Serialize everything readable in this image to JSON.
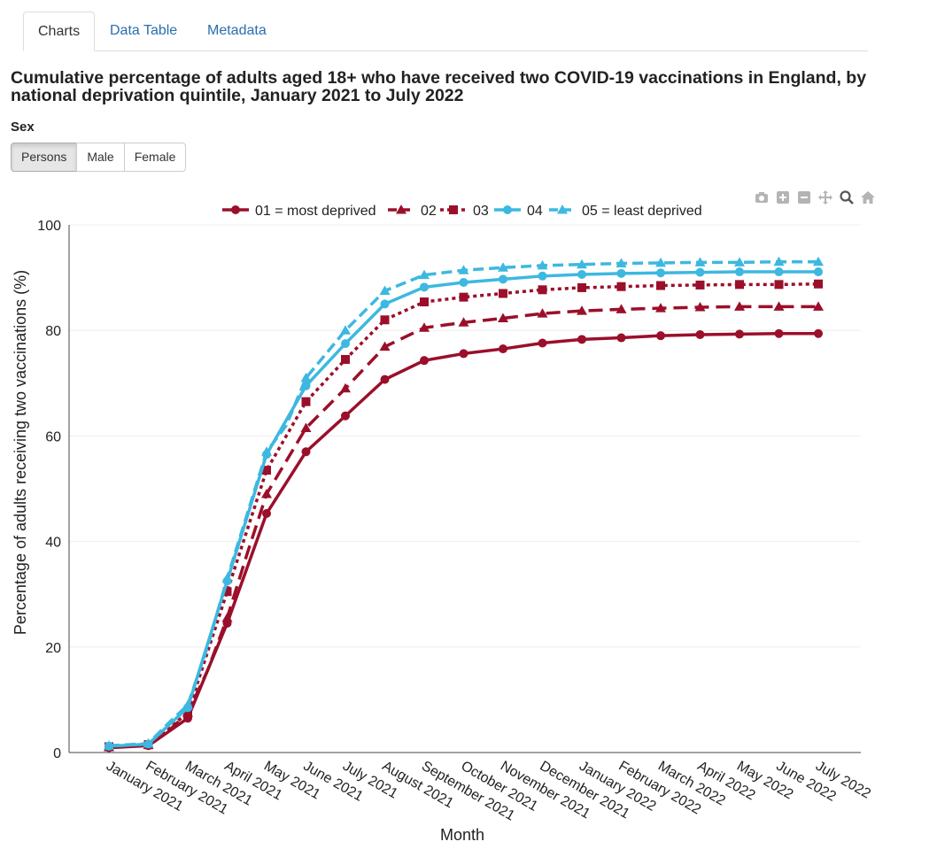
{
  "tabs": [
    {
      "label": "Charts",
      "active": true
    },
    {
      "label": "Data Table",
      "active": false
    },
    {
      "label": "Metadata",
      "active": false
    }
  ],
  "title": "Cumulative percentage of adults aged 18+ who have received two COVID-19 vaccinations in England, by national deprivation quintile, January 2021 to July 2022",
  "filter": {
    "label": "Sex",
    "options": [
      "Persons",
      "Male",
      "Female"
    ],
    "selected": "Persons"
  },
  "modebar": [
    "camera-icon",
    "zoom-in-icon",
    "zoom-out-icon",
    "pan-icon",
    "zoom-icon",
    "home-icon"
  ],
  "chart_data": {
    "type": "line",
    "xlabel": "Month",
    "ylabel": "Percentage of adults receiving two vaccinations (%)",
    "ylim": [
      0,
      100
    ],
    "yticks": [
      0,
      20,
      40,
      60,
      80,
      100
    ],
    "grid": true,
    "legend_position": "top",
    "categories": [
      "January 2021",
      "February 2021",
      "March 2021",
      "April 2021",
      "May 2021",
      "June 2021",
      "July 2021",
      "August 2021",
      "September 2021",
      "October 2021",
      "November 2021",
      "December 2021",
      "January 2022",
      "February 2022",
      "March 2022",
      "April 2022",
      "May 2022",
      "June 2022",
      "July 2022"
    ],
    "series": [
      {
        "name": "01 = most deprived",
        "color": "#9b0f2a",
        "dash": "solid",
        "marker": "circle",
        "x": [
          0,
          1,
          2,
          3,
          4,
          5,
          6,
          7,
          8,
          9,
          10,
          11,
          12,
          13,
          14,
          15,
          16,
          17,
          18
        ],
        "values": [
          0.9,
          1.3,
          6.5,
          24.5,
          45.3,
          57.0,
          63.8,
          70.7,
          74.3,
          75.6,
          76.5,
          77.6,
          78.3,
          78.6,
          79.0,
          79.2,
          79.3,
          79.4,
          79.4
        ]
      },
      {
        "name": "02",
        "color": "#9b0f2a",
        "dash": "longdash",
        "marker": "triangle",
        "x": [
          0,
          0.5,
          1,
          1.5,
          2,
          2.5,
          3,
          3.5,
          4,
          5,
          6,
          7,
          8,
          9,
          10,
          11,
          12,
          13,
          14,
          15,
          16,
          17,
          18
        ],
        "values": [
          1.0,
          1.2,
          1.4,
          4.0,
          7.5,
          15.5,
          25.5,
          37.5,
          49.0,
          61.5,
          69.0,
          76.9,
          80.5,
          81.5,
          82.3,
          83.2,
          83.7,
          84.0,
          84.2,
          84.4,
          84.5,
          84.5,
          84.5
        ]
      },
      {
        "name": "03",
        "color": "#9b0f2a",
        "dash": "dot",
        "marker": "square",
        "x": [
          0,
          1,
          2,
          3,
          4,
          5,
          6,
          7,
          8,
          9,
          10,
          11,
          12,
          13,
          14,
          15,
          16,
          17,
          18
        ],
        "values": [
          1.1,
          1.5,
          7.5,
          30.5,
          53.5,
          66.5,
          74.5,
          82.0,
          85.4,
          86.3,
          87.0,
          87.7,
          88.1,
          88.3,
          88.5,
          88.6,
          88.7,
          88.7,
          88.8
        ]
      },
      {
        "name": "04",
        "color": "#3db8e0",
        "dash": "solid",
        "marker": "circle",
        "x": [
          0,
          1,
          2,
          3,
          4,
          5,
          6,
          7,
          8,
          9,
          10,
          11,
          12,
          13,
          14,
          15,
          16,
          17,
          18
        ],
        "values": [
          1.2,
          1.6,
          8.5,
          32.5,
          56.5,
          69.5,
          77.5,
          85.0,
          88.2,
          89.1,
          89.7,
          90.3,
          90.6,
          90.8,
          90.9,
          91.0,
          91.1,
          91.1,
          91.1
        ]
      },
      {
        "name": "05 = least deprived",
        "color": "#3db8e0",
        "dash": "dash",
        "marker": "triangle",
        "x": [
          0,
          0.5,
          1,
          1.5,
          2,
          2.5,
          3,
          3.5,
          4,
          4.5,
          5,
          6,
          7,
          8,
          9,
          10,
          11,
          12,
          13,
          14,
          15,
          16,
          17,
          18
        ],
        "values": [
          1.3,
          1.5,
          1.7,
          5.5,
          9.0,
          20.0,
          33.0,
          45.0,
          57.0,
          62.0,
          71.0,
          80.0,
          87.5,
          90.5,
          91.4,
          91.9,
          92.3,
          92.5,
          92.7,
          92.8,
          92.9,
          92.9,
          93.0,
          93.0
        ]
      }
    ]
  }
}
